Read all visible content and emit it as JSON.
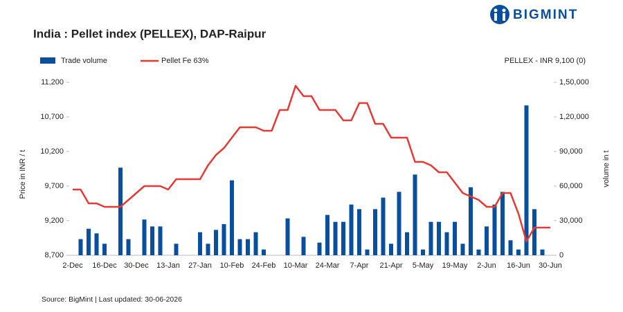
{
  "logo": "BIGMINT",
  "chart_data": {
    "type": "combo",
    "title": "India : Pellet index (PELLEX), DAP-Raipur",
    "subtitle": "PELLEX - INR 9,100 (0)",
    "y_label": "Price in INR / t",
    "y2_label": "volume in t",
    "source": "Source: BigMint | Last updated: 30-06-2026",
    "categories": [
      "2-Dec",
      null,
      null,
      null,
      "16-Dec",
      null,
      null,
      null,
      "30-Dec",
      null,
      null,
      null,
      "13-Jan",
      null,
      null,
      null,
      "27-Jan",
      null,
      null,
      null,
      "10-Feb",
      null,
      null,
      null,
      "24-Feb",
      null,
      null,
      null,
      "10-Mar",
      null,
      null,
      null,
      "24-Mar",
      null,
      null,
      null,
      "7-Apr",
      null,
      null,
      null,
      "21-Apr",
      null,
      null,
      null,
      "5-May",
      null,
      null,
      null,
      "19-May",
      null,
      null,
      null,
      "2-Jun",
      null,
      null,
      null,
      "16-Jun",
      null,
      null,
      null,
      "30-Jun"
    ],
    "ylim": [
      8700,
      11200
    ],
    "yticks": [
      {
        "value": 8700,
        "label": "8,700"
      },
      {
        "value": 9200,
        "label": "9,200"
      },
      {
        "value": 9700,
        "label": "9,700"
      },
      {
        "value": 10200,
        "label": "10,200"
      },
      {
        "value": 10700,
        "label": "10,700"
      },
      {
        "value": 11200,
        "label": "11,200"
      }
    ],
    "y2lim": [
      0,
      150000
    ],
    "y2ticks": [
      0,
      {
        "value": 30000,
        "label": "30,000"
      },
      {
        "value": 60000,
        "label": "60,000"
      },
      {
        "value": 90000,
        "label": "90,000"
      },
      {
        "value": 120000,
        "label": "1,20,000"
      },
      {
        "value": 150000,
        "label": "1,50,000"
      }
    ],
    "legend": "top-left",
    "series": [
      {
        "name": "Trade volume",
        "type": "bar",
        "axis": "y2",
        "color": "#0a4f9e",
        "values": [
          null,
          14000,
          23000,
          19000,
          10000,
          null,
          76000,
          14000,
          null,
          31000,
          25000,
          25000,
          null,
          10000,
          null,
          null,
          20000,
          10000,
          22000,
          27000,
          65000,
          14000,
          14000,
          20000,
          5000,
          null,
          null,
          32000,
          null,
          16000,
          null,
          11000,
          35000,
          29000,
          29000,
          44000,
          40000,
          5000,
          40000,
          50000,
          10000,
          55000,
          20000,
          70000,
          5000,
          29000,
          29000,
          20000,
          29000,
          10000,
          59000,
          5000,
          25000,
          44000,
          55000,
          13000,
          5000,
          130000,
          40000,
          5000,
          null
        ]
      },
      {
        "name": "Pellet Fe 63%",
        "type": "line",
        "color": "#e53935",
        "values": [
          9650,
          9650,
          9450,
          9450,
          9400,
          9400,
          9400,
          9500,
          9600,
          9700,
          9700,
          9700,
          9650,
          9800,
          9800,
          9800,
          9800,
          10000,
          10150,
          10250,
          10400,
          10550,
          10550,
          10550,
          10500,
          10500,
          10800,
          10800,
          11150,
          11000,
          11000,
          10800,
          10800,
          10800,
          10650,
          10650,
          10900,
          10900,
          10600,
          10600,
          10400,
          10400,
          10400,
          10050,
          10050,
          10000,
          9900,
          9900,
          9750,
          9600,
          9550,
          9500,
          9400,
          9400,
          9600,
          9600,
          9300,
          8900,
          9100,
          9100,
          9100
        ]
      }
    ]
  }
}
